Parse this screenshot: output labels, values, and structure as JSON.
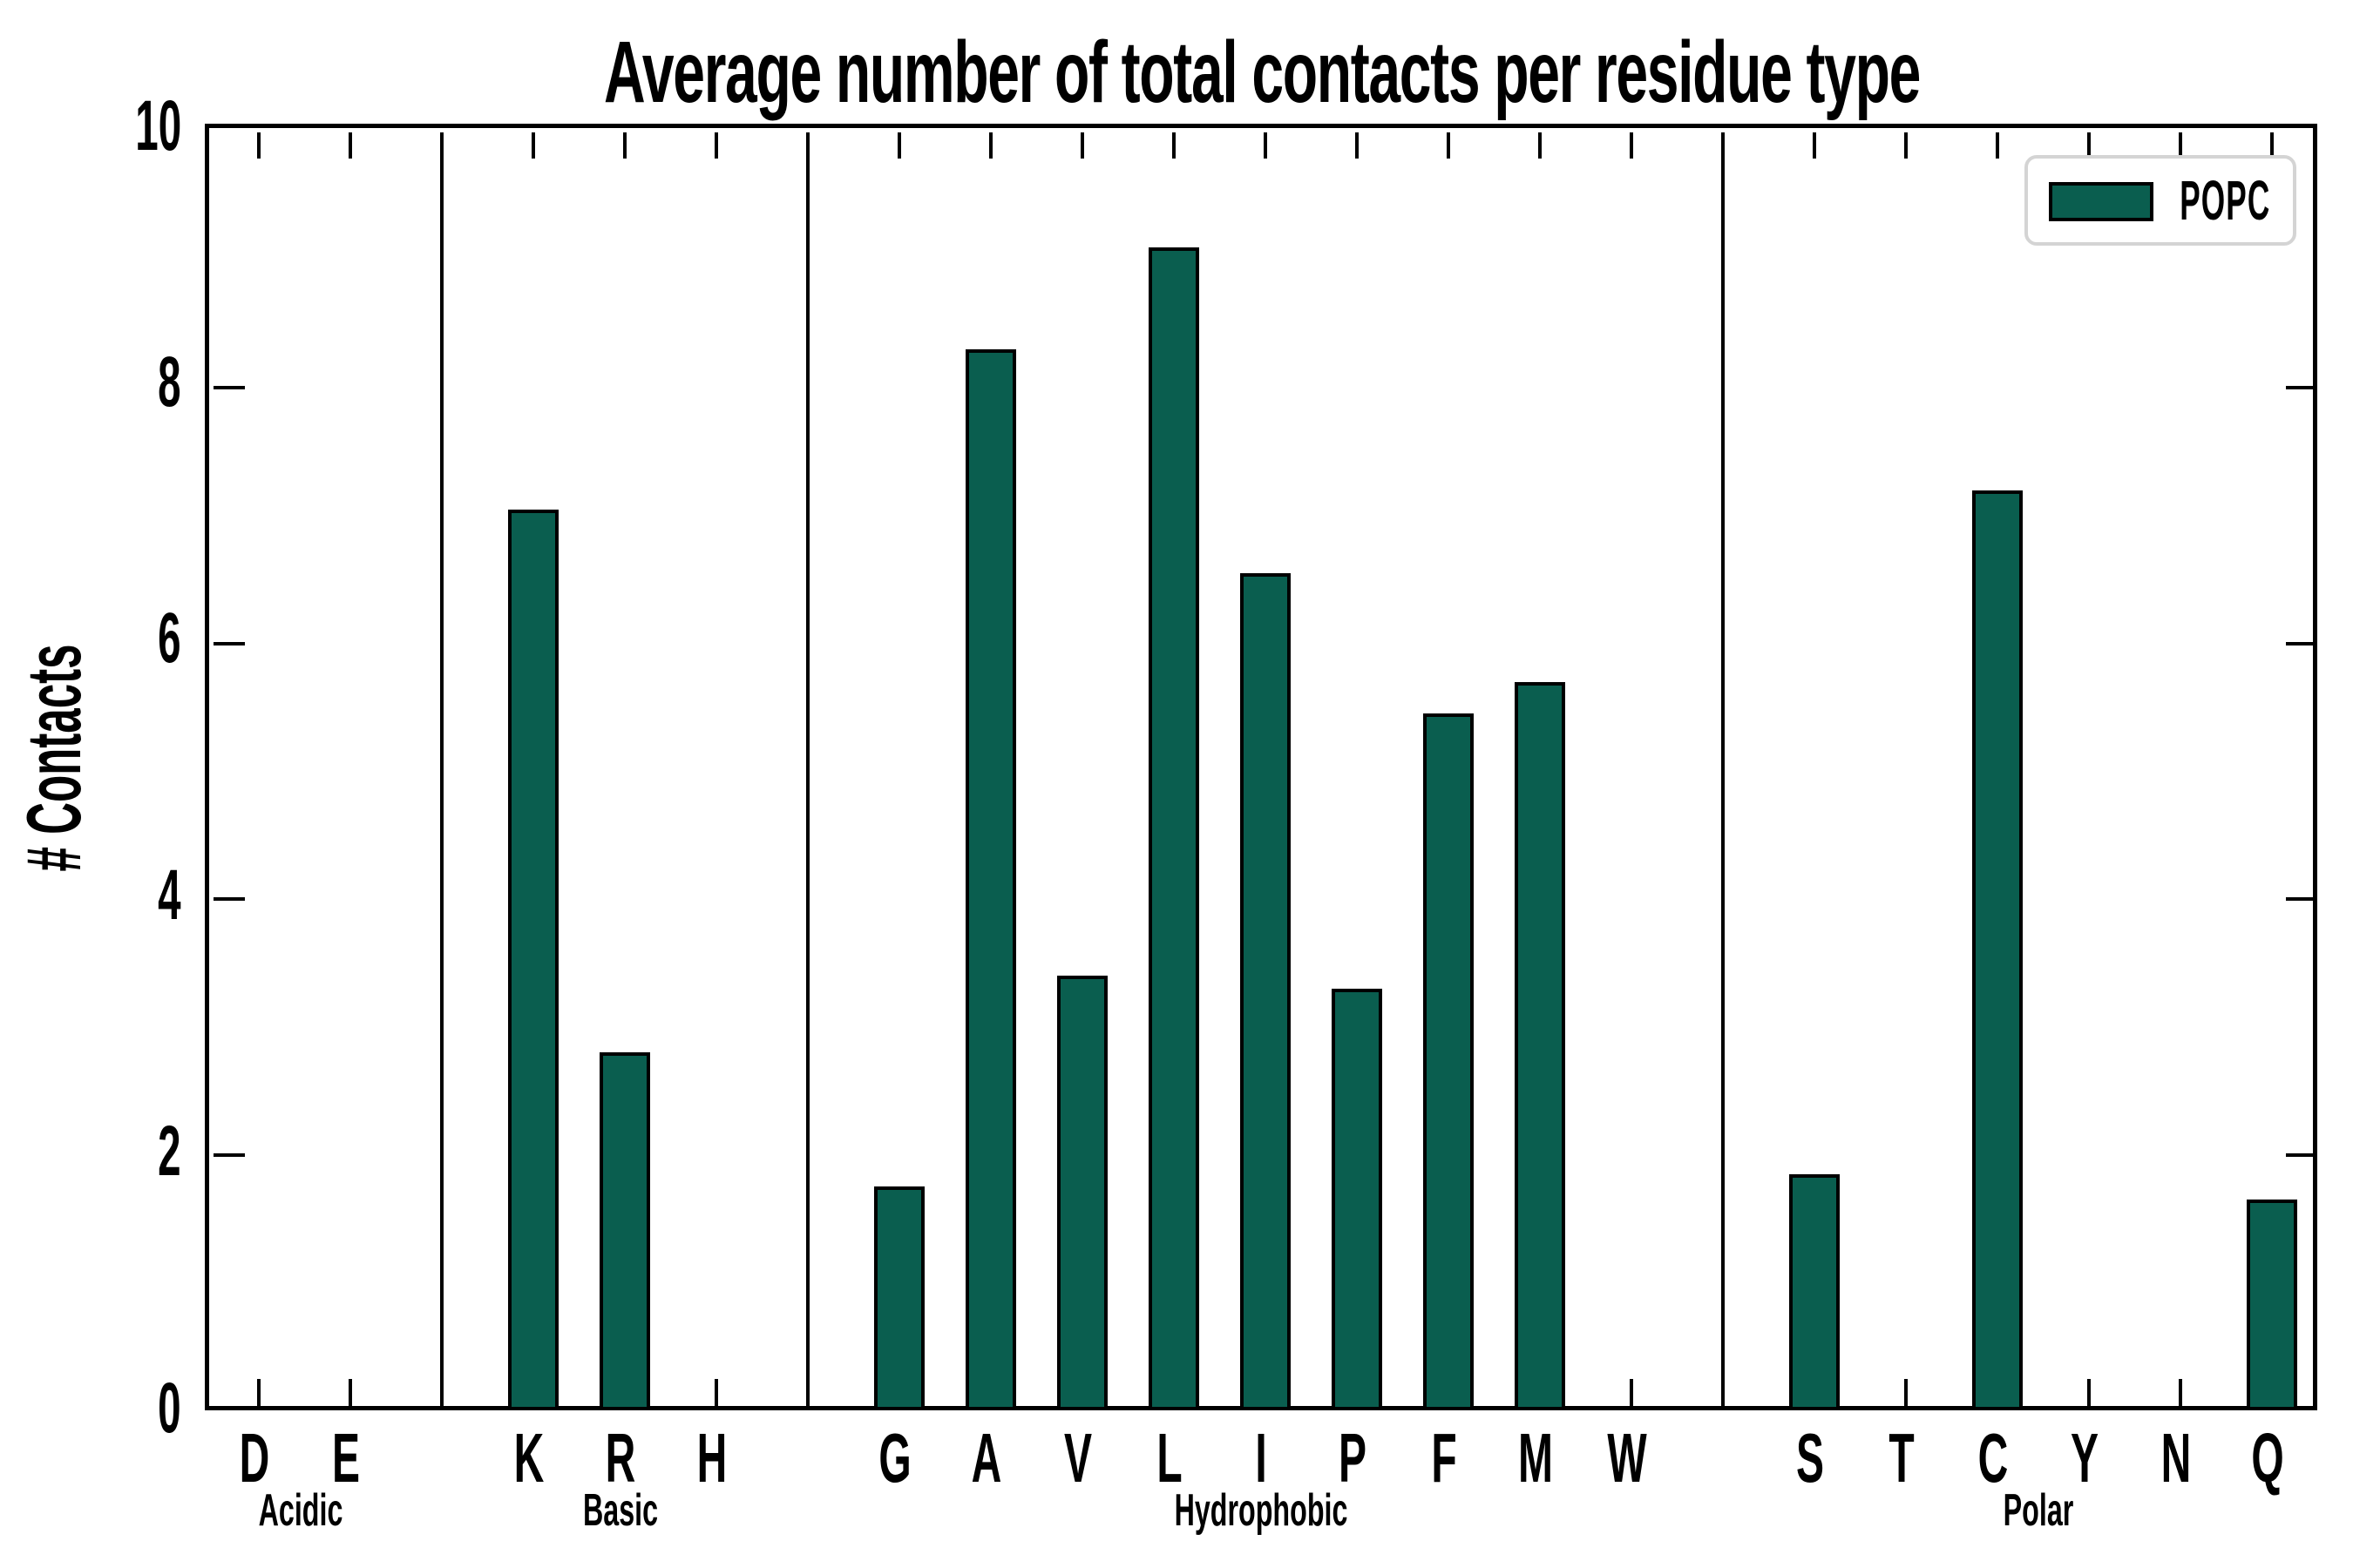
{
  "title": "Average number of total contacts per residue type",
  "y_axis": {
    "label": "# Contacts",
    "tick_labels": [
      "0",
      "2",
      "4",
      "6",
      "8",
      "10"
    ],
    "min": 0,
    "max": 10
  },
  "legend": {
    "entries": [
      {
        "label": "POPC",
        "swatch_color": "#0A5E4F"
      }
    ],
    "position": "upper right"
  },
  "colors": {
    "bar_fill": "#0A5E4F",
    "bar_edge": "#000000",
    "axis": "#000000",
    "separator": "#000000",
    "legend_border": "#D4D4D4",
    "background": "#FFFFFF",
    "text": "#000000"
  },
  "chart_data": {
    "type": "bar",
    "title": "Average number of total contacts per residue type",
    "xlabel": "",
    "ylabel": "# Contacts",
    "ylim": [
      0,
      10
    ],
    "yticks": [
      0,
      2,
      4,
      6,
      8,
      10
    ],
    "grid": false,
    "legend_position": "upper right",
    "series_name": "POPC",
    "groups": [
      {
        "label": "Acidic",
        "categories": [
          "D",
          "E"
        ],
        "values": [
          0.02,
          0.02
        ]
      },
      {
        "label": "Basic",
        "categories": [
          "K",
          "R",
          "H"
        ],
        "values": [
          7.05,
          2.8,
          0.02
        ]
      },
      {
        "label": "Hydrophobic",
        "categories": [
          "G",
          "A",
          "V",
          "L",
          "I",
          "P",
          "F",
          "M",
          "W"
        ],
        "values": [
          1.75,
          8.3,
          3.4,
          9.1,
          6.55,
          3.3,
          5.45,
          5.7,
          0.02
        ]
      },
      {
        "label": "Polar",
        "categories": [
          "S",
          "T",
          "C",
          "Y",
          "N",
          "Q"
        ],
        "values": [
          1.85,
          0.02,
          7.2,
          0.02,
          0.02,
          1.65
        ]
      }
    ]
  }
}
